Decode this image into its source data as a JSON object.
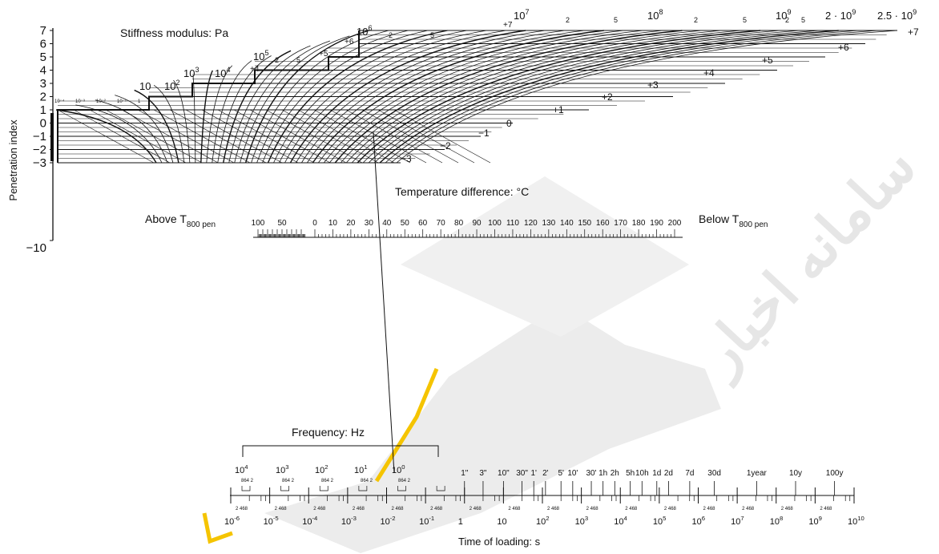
{
  "chart_data": {
    "type": "nomograph",
    "stiffness_title": "Stiffness modulus: Pa",
    "pi_axis": {
      "label": "Penetration index",
      "ticks": [
        "7",
        "6",
        "5",
        "4",
        "3",
        "2",
        "1",
        "0",
        "−1",
        "−2",
        "−3"
      ],
      "bottom_tick": "−10"
    },
    "stiffness_labels": [
      {
        "base": "10",
        "exp": ""
      },
      {
        "base": "10",
        "exp": "2"
      },
      {
        "base": "10",
        "exp": "3"
      },
      {
        "base": "10",
        "exp": "4"
      },
      {
        "base": "10",
        "exp": "5"
      },
      {
        "base": "10",
        "exp": "6"
      },
      {
        "base": "10",
        "exp": "7"
      },
      {
        "base": "10",
        "exp": "8"
      },
      {
        "base": "10",
        "exp": "9"
      },
      {
        "base": "2 · 10",
        "exp": "9"
      },
      {
        "base": "2.5 · 10",
        "exp": "9"
      }
    ],
    "stiffness_minor_labels": [
      "2",
      "5",
      "2",
      "5",
      "2",
      "5",
      "2",
      "5",
      "2",
      "5"
    ],
    "tiny_labels": [
      "10⁻⁴",
      "10⁻³",
      "10⁻²",
      "10⁻¹",
      "1"
    ],
    "pi_curve_labels_top": [
      "+6",
      "+5",
      "+4",
      "+7"
    ],
    "pi_curve_labels_right": [
      "+7",
      "+6",
      "+5",
      "+4",
      "+3",
      "+2",
      "+1",
      "0",
      "−1",
      "−2",
      "−3"
    ],
    "temperature": {
      "title": "Temperature difference: °C",
      "left_label": "Above T",
      "left_sub": "800 pen",
      "right_label": "Below T",
      "right_sub": "800 pen",
      "left_ticks": [
        "100",
        "50"
      ],
      "right_ticks": [
        "0",
        "10",
        "20",
        "30",
        "40",
        "50",
        "60",
        "70",
        "80",
        "90",
        "100",
        "110",
        "120",
        "130",
        "140",
        "150",
        "160",
        "170",
        "180",
        "190",
        "200"
      ]
    },
    "frequency": {
      "label": "Frequency: Hz",
      "ticks": [
        {
          "base": "10",
          "exp": "4"
        },
        {
          "base": "10",
          "exp": "3"
        },
        {
          "base": "10",
          "exp": "2"
        },
        {
          "base": "10",
          "exp": "1"
        },
        {
          "base": "10",
          "exp": "0"
        }
      ],
      "sub_label": "864 2"
    },
    "time_labels": [
      "1\"",
      "3\"",
      "10\"",
      "30\"",
      "1'",
      "2'",
      "5'",
      "10'",
      "30'",
      "1h",
      "2h",
      "5h",
      "10h",
      "1d",
      "2d",
      "7d",
      "30d",
      "1year",
      "10y",
      "100y"
    ],
    "time_axis": {
      "label": "Time of loading: s",
      "ticks": [
        {
          "base": "10",
          "exp": "-6"
        },
        {
          "base": "10",
          "exp": "-5"
        },
        {
          "base": "10",
          "exp": "-4"
        },
        {
          "base": "10",
          "exp": "-3"
        },
        {
          "base": "10",
          "exp": "-2"
        },
        {
          "base": "10",
          "exp": "-1"
        },
        {
          "base": "1",
          "exp": ""
        },
        {
          "base": "10",
          "exp": ""
        },
        {
          "base": "10",
          "exp": "2"
        },
        {
          "base": "10",
          "exp": "3"
        },
        {
          "base": "10",
          "exp": "4"
        },
        {
          "base": "10",
          "exp": "5"
        },
        {
          "base": "10",
          "exp": "6"
        },
        {
          "base": "10",
          "exp": "7"
        },
        {
          "base": "10",
          "exp": "8"
        },
        {
          "base": "10",
          "exp": "9"
        },
        {
          "base": "10",
          "exp": "10"
        }
      ],
      "sub_label": "2 468"
    },
    "watermark_text": "سامانه اخبار"
  },
  "colors": {
    "ink": "#111111",
    "watermark": "#e6e6e6",
    "accent_yellow": "#f5c400"
  }
}
